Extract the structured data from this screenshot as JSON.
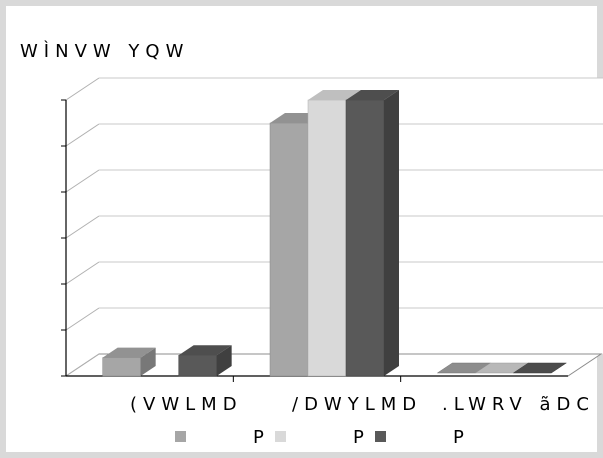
{
  "chart_data": {
    "type": "bar",
    "title": "",
    "ylabel": "WÌNVW  YQW",
    "xlabel": "",
    "categories": [
      "(VWLMD",
      "/DWYLMD",
      ".LWRV ãDC"
    ],
    "ylim": [
      0,
      6
    ],
    "grid": true,
    "legend_position": "bottom",
    "series": [
      {
        "name": "P",
        "color": "#a6a6a6",
        "values": [
          0.4,
          5.5,
          0.0
        ]
      },
      {
        "name": "P",
        "color": "#d9d9d9",
        "values": [
          0.0,
          6.0,
          0.0
        ]
      },
      {
        "name": "P",
        "color": "#595959",
        "values": [
          0.45,
          6.0,
          0.0
        ]
      }
    ]
  }
}
